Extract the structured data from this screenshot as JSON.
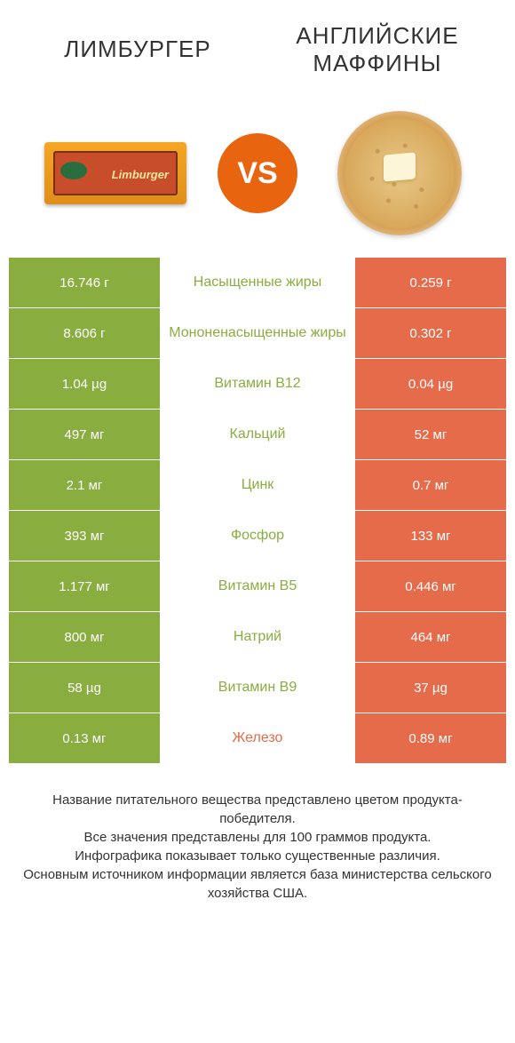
{
  "colors": {
    "green": "#8aad3f",
    "orange": "#e66b4a",
    "white": "#ffffff",
    "vs_bg": "#e8640f"
  },
  "header": {
    "left_title": "ЛИМБУРГЕР",
    "right_title": "АНГЛИЙСКИЕ МАФФИНЫ",
    "vs_label": "VS",
    "cheese_brand_text": "Limburger"
  },
  "rows": [
    {
      "left": "16.746 г",
      "mid": "Насыщенные жиры",
      "right": "0.259 г",
      "winner": "left"
    },
    {
      "left": "8.606 г",
      "mid": "Мононенасыщенные жиры",
      "right": "0.302 г",
      "winner": "left"
    },
    {
      "left": "1.04 µg",
      "mid": "Витамин B12",
      "right": "0.04 µg",
      "winner": "left"
    },
    {
      "left": "497 мг",
      "mid": "Кальций",
      "right": "52 мг",
      "winner": "left"
    },
    {
      "left": "2.1 мг",
      "mid": "Цинк",
      "right": "0.7 мг",
      "winner": "left"
    },
    {
      "left": "393 мг",
      "mid": "Фосфор",
      "right": "133 мг",
      "winner": "left"
    },
    {
      "left": "1.177 мг",
      "mid": "Витамин B5",
      "right": "0.446 мг",
      "winner": "left"
    },
    {
      "left": "800 мг",
      "mid": "Натрий",
      "right": "464 мг",
      "winner": "left"
    },
    {
      "left": "58 µg",
      "mid": "Витамин B9",
      "right": "37 µg",
      "winner": "left"
    },
    {
      "left": "0.13 мг",
      "mid": "Железо",
      "right": "0.89 мг",
      "winner": "right"
    }
  ],
  "footer": {
    "line1": "Название питательного вещества представлено цветом продукта-победителя.",
    "line2": "Все значения представлены для 100 граммов продукта.",
    "line3": "Инфографика показывает только существенные различия.",
    "line4": "Основным источником информации является база министерства сельского хозяйства США."
  }
}
